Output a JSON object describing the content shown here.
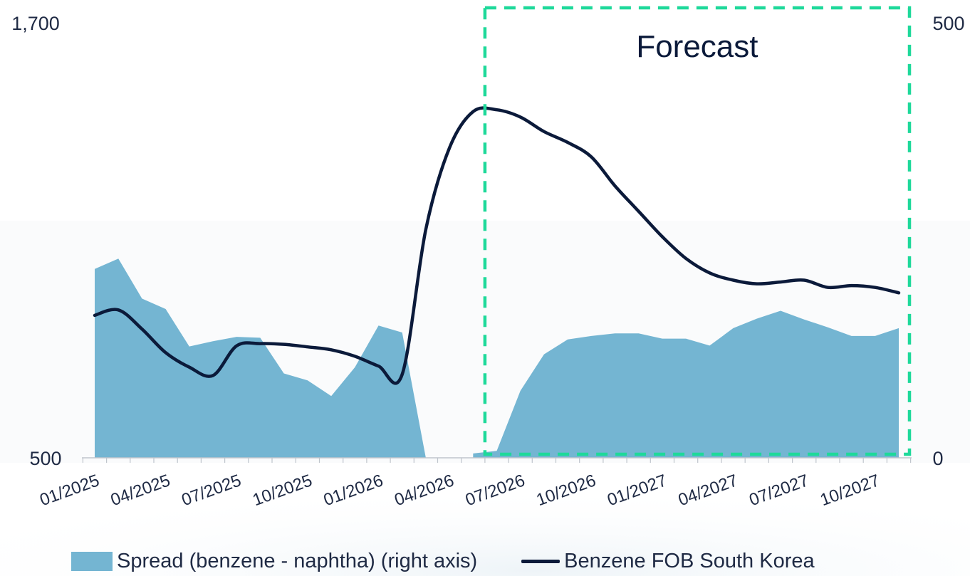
{
  "chart_data": {
    "type": "area",
    "x": [
      "01/2025",
      "02/2025",
      "03/2025",
      "04/2025",
      "05/2025",
      "06/2025",
      "07/2025",
      "08/2025",
      "09/2025",
      "10/2025",
      "11/2025",
      "12/2025",
      "01/2026",
      "02/2026",
      "03/2026",
      "04/2026",
      "05/2026",
      "06/2026",
      "07/2026",
      "08/2026",
      "09/2026",
      "10/2026",
      "11/2026",
      "12/2026",
      "01/2027",
      "02/2027",
      "03/2027",
      "04/2027",
      "05/2027",
      "06/2027",
      "07/2027",
      "08/2027",
      "09/2027",
      "10/2027",
      "11/2027"
    ],
    "x_tick_labels": [
      "01/2025",
      "04/2025",
      "07/2025",
      "10/2025",
      "01/2026",
      "04/2026",
      "07/2026",
      "10/2026",
      "01/2027",
      "04/2027",
      "07/2027",
      "10/2027"
    ],
    "series": [
      {
        "name": "Spread (benzene - naphtha) (right axis)",
        "type": "area",
        "axis": "right",
        "color": "#74b5d2",
        "values": [
          217,
          229,
          183,
          171,
          128,
          134,
          139,
          138,
          97,
          89,
          71,
          104,
          152,
          144,
          0,
          null,
          5,
          8,
          77,
          119,
          136,
          140,
          143,
          143,
          137,
          137,
          129,
          149,
          160,
          169,
          159,
          150,
          140,
          140,
          149
        ]
      },
      {
        "name": "Benzene FOB South Korea",
        "type": "line",
        "axis": "left",
        "color": "#0b1a3a",
        "values": [
          893,
          908,
          855,
          790,
          750,
          727,
          809,
          815,
          813,
          806,
          798,
          780,
          753,
          730,
          1130,
          1355,
          1455,
          1460,
          1440,
          1400,
          1370,
          1330,
          1250,
          1180,
          1110,
          1050,
          1010,
          990,
          980,
          985,
          990,
          970,
          975,
          970,
          955
        ]
      }
    ],
    "y_left": {
      "min": 500,
      "max": 1700,
      "tick_labels": [
        "500",
        "1,700"
      ]
    },
    "y_right": {
      "min": 0,
      "max": 500,
      "tick_labels": [
        "0",
        "500"
      ]
    },
    "annotation": {
      "label": "Forecast",
      "from": "06/2026",
      "to": "11/2027",
      "color": "#1ed99a"
    },
    "legend": {
      "position": "bottom",
      "entries": [
        "Spread (benzene - naphtha) (right axis)",
        "Benzene FOB South Korea"
      ]
    }
  }
}
